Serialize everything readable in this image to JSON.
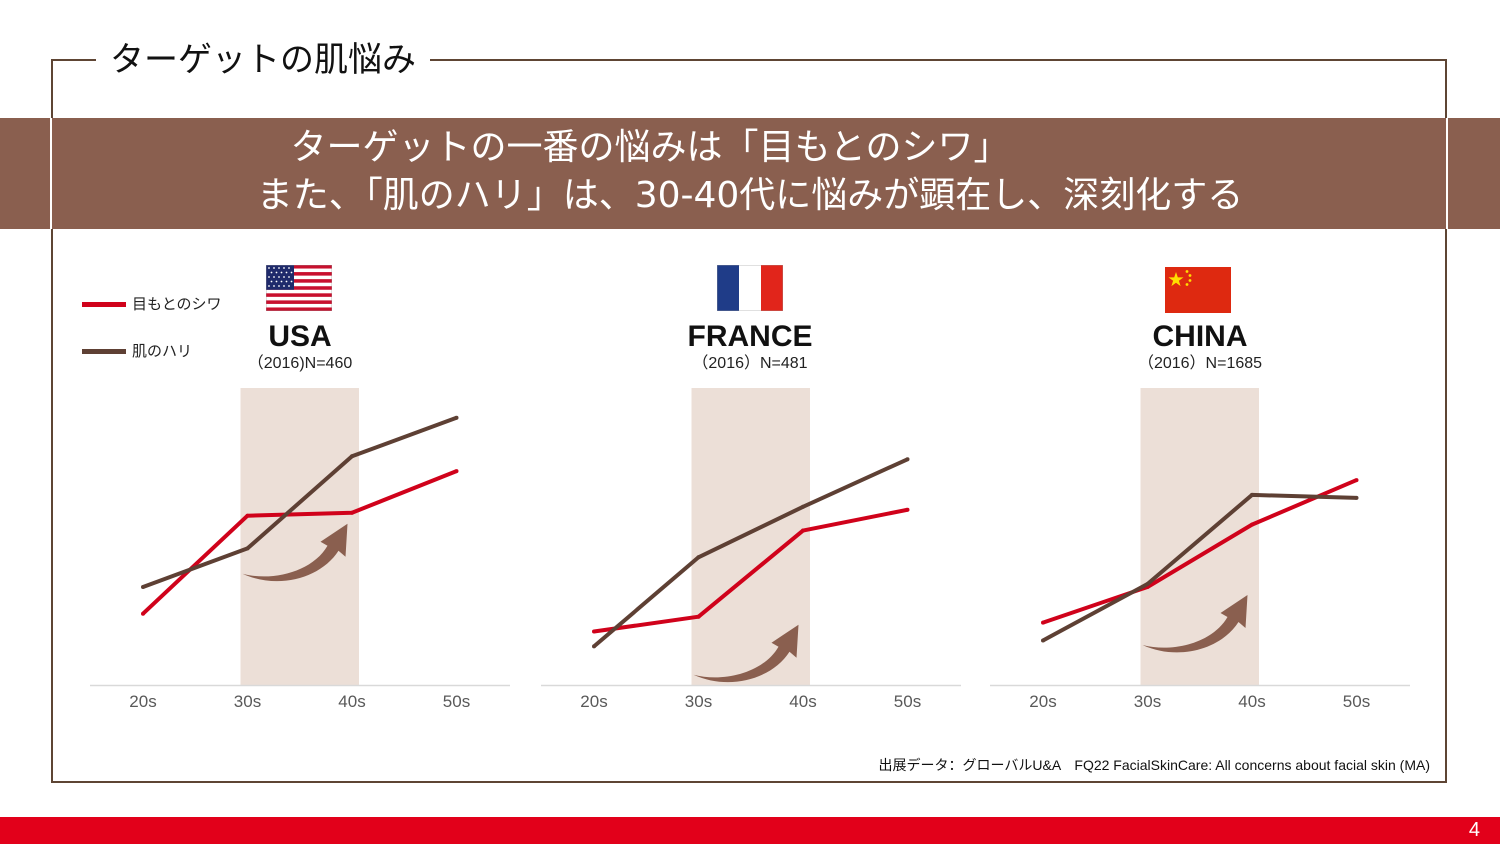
{
  "slide": {
    "title": "ターゲットの肌悩み",
    "headline_1": "ターゲットの一番の悩みは「目もとのシワ」",
    "headline_2": "また、「肌のハリ」は、30-40代に悩みが顕在し、深刻化する",
    "source": "出展データ：グローバルU&A　FQ22 FacialSkinCare: All concerns about facial skin (MA)",
    "page_number": "4"
  },
  "legend": [
    {
      "label": "目もとのシワ",
      "color": "#d0021b"
    },
    {
      "label": "肌のハリ",
      "color": "#5e4034"
    }
  ],
  "colors": {
    "frame": "#5e4534",
    "banner": "#8a5f4f",
    "highlight_band": "#ecdfd7",
    "arrow": "#8a5f4f",
    "footer": "#e2001a"
  },
  "chart_data": [
    {
      "type": "line",
      "country": "USA",
      "flag_icon": "usa-flag-icon",
      "subtitle": "（2016)N=460",
      "categories": [
        "20s",
        "30s",
        "40s",
        "50s"
      ],
      "highlight_categories": [
        "30s",
        "40s"
      ],
      "grid": false,
      "yaxis_visible": false,
      "ylim": [
        0,
        100
      ],
      "series": [
        {
          "name": "目もとのシワ",
          "values": [
            24,
            57,
            58,
            72
          ]
        },
        {
          "name": "肌のハリ",
          "values": [
            33,
            46,
            77,
            90
          ]
        }
      ]
    },
    {
      "type": "line",
      "country": "FRANCE",
      "flag_icon": "france-flag-icon",
      "subtitle": "（2016）N=481",
      "categories": [
        "20s",
        "30s",
        "40s",
        "50s"
      ],
      "highlight_categories": [
        "30s",
        "40s"
      ],
      "grid": false,
      "yaxis_visible": false,
      "ylim": [
        0,
        100
      ],
      "series": [
        {
          "name": "目もとのシワ",
          "values": [
            18,
            23,
            52,
            59
          ]
        },
        {
          "name": "肌のハリ",
          "values": [
            13,
            43,
            60,
            76
          ]
        }
      ]
    },
    {
      "type": "line",
      "country": "CHINA",
      "flag_icon": "china-flag-icon",
      "subtitle": "（2016）N=1685",
      "categories": [
        "20s",
        "30s",
        "40s",
        "50s"
      ],
      "highlight_categories": [
        "30s",
        "40s"
      ],
      "grid": false,
      "yaxis_visible": false,
      "ylim": [
        0,
        100
      ],
      "series": [
        {
          "name": "目もとのシワ",
          "values": [
            21,
            33,
            54,
            69
          ]
        },
        {
          "name": "肌のハリ",
          "values": [
            15,
            34,
            64,
            63
          ]
        }
      ]
    }
  ]
}
